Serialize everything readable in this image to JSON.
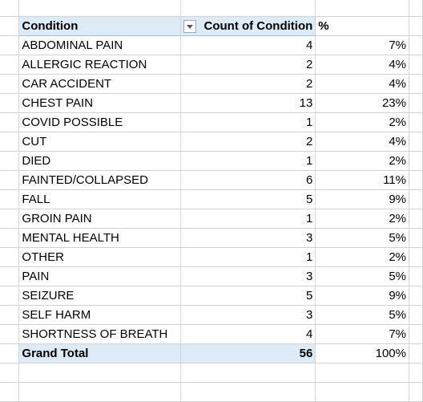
{
  "pivot": {
    "headers": {
      "condition": "Condition",
      "count": "Count of Condition",
      "percent": "%"
    },
    "filter_icon": "dropdown-arrow-icon",
    "rows": [
      {
        "condition": "ABDOMINAL PAIN",
        "count": "4",
        "percent": "7%"
      },
      {
        "condition": "ALLERGIC REACTION",
        "count": "2",
        "percent": "4%"
      },
      {
        "condition": "CAR ACCIDENT",
        "count": "2",
        "percent": "4%"
      },
      {
        "condition": "CHEST PAIN",
        "count": "13",
        "percent": "23%"
      },
      {
        "condition": "COVID POSSIBLE",
        "count": "1",
        "percent": "2%"
      },
      {
        "condition": "CUT",
        "count": "2",
        "percent": "4%"
      },
      {
        "condition": "DIED",
        "count": "1",
        "percent": "2%"
      },
      {
        "condition": "FAINTED/COLLAPSED",
        "count": "6",
        "percent": "11%"
      },
      {
        "condition": "FALL",
        "count": "5",
        "percent": "9%"
      },
      {
        "condition": "GROIN PAIN",
        "count": "1",
        "percent": "2%"
      },
      {
        "condition": "MENTAL HEALTH",
        "count": "3",
        "percent": "5%"
      },
      {
        "condition": "OTHER",
        "count": "1",
        "percent": "2%"
      },
      {
        "condition": "PAIN",
        "count": "3",
        "percent": "5%"
      },
      {
        "condition": "SEIZURE",
        "count": "5",
        "percent": "9%"
      },
      {
        "condition": "SELF HARM",
        "count": "3",
        "percent": "5%"
      },
      {
        "condition": "SHORTNESS OF BREATH",
        "count": "4",
        "percent": "7%"
      }
    ],
    "total": {
      "label": "Grand Total",
      "count": "56",
      "percent": "100%"
    }
  },
  "colors": {
    "pivot_fill": "#ddebf7",
    "pivot_border": "#9bc2e6",
    "gridline": "#d4d4d4"
  }
}
